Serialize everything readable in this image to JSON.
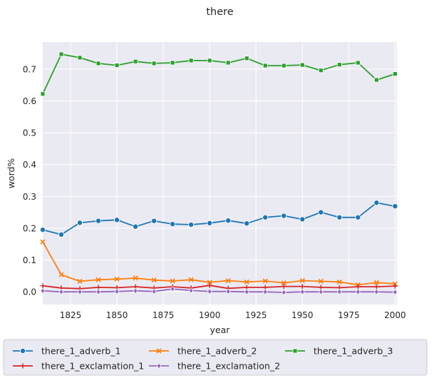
{
  "chart_data": {
    "type": "line",
    "title": "there",
    "xlabel": "year",
    "ylabel": "word%",
    "xlim": [
      1810,
      2001
    ],
    "ylim": [
      -0.04,
      0.785
    ],
    "xticks": [
      1825,
      1850,
      1875,
      1900,
      1925,
      1950,
      1975,
      2000
    ],
    "yticks": [
      0.0,
      0.1,
      0.2,
      0.3,
      0.4,
      0.5,
      0.6,
      0.7
    ],
    "grid": true,
    "legend_position": "bottom",
    "x": [
      1810,
      1820,
      1830,
      1840,
      1850,
      1860,
      1870,
      1880,
      1890,
      1900,
      1910,
      1920,
      1930,
      1940,
      1950,
      1960,
      1970,
      1980,
      1990,
      2000
    ],
    "series": [
      {
        "name": "there_1_adverb_1",
        "color": "#1f77b4",
        "marker": "circle",
        "values": [
          0.195,
          0.18,
          0.217,
          0.223,
          0.226,
          0.205,
          0.223,
          0.213,
          0.211,
          0.216,
          0.224,
          0.215,
          0.234,
          0.239,
          0.228,
          0.25,
          0.234,
          0.234,
          0.28,
          0.269
        ]
      },
      {
        "name": "there_1_adverb_2",
        "color": "#ff7f0e",
        "marker": "x",
        "values": [
          0.157,
          0.054,
          0.033,
          0.038,
          0.04,
          0.043,
          0.037,
          0.034,
          0.038,
          0.03,
          0.035,
          0.031,
          0.034,
          0.028,
          0.035,
          0.033,
          0.031,
          0.022,
          0.029,
          0.025
        ]
      },
      {
        "name": "there_1_adverb_3",
        "color": "#2ca02c",
        "marker": "square",
        "values": [
          0.622,
          0.747,
          0.736,
          0.718,
          0.712,
          0.724,
          0.718,
          0.72,
          0.727,
          0.727,
          0.72,
          0.734,
          0.711,
          0.711,
          0.713,
          0.696,
          0.714,
          0.72,
          0.666,
          0.685
        ]
      },
      {
        "name": "there_1_exclamation_1",
        "color": "#d62728",
        "marker": "plus",
        "values": [
          0.019,
          0.012,
          0.01,
          0.014,
          0.013,
          0.016,
          0.012,
          0.016,
          0.012,
          0.02,
          0.011,
          0.014,
          0.014,
          0.017,
          0.017,
          0.014,
          0.013,
          0.016,
          0.016,
          0.018
        ]
      },
      {
        "name": "there_1_exclamation_2",
        "color": "#9467bd",
        "marker": "diamond",
        "values": [
          0.003,
          0.0,
          0.0,
          0.0,
          0.001,
          0.003,
          0.001,
          0.009,
          0.004,
          0.001,
          0.001,
          0.0,
          0.0,
          -0.002,
          0.0,
          0.0,
          0.0,
          0.0,
          0.0,
          -0.001
        ]
      }
    ]
  }
}
